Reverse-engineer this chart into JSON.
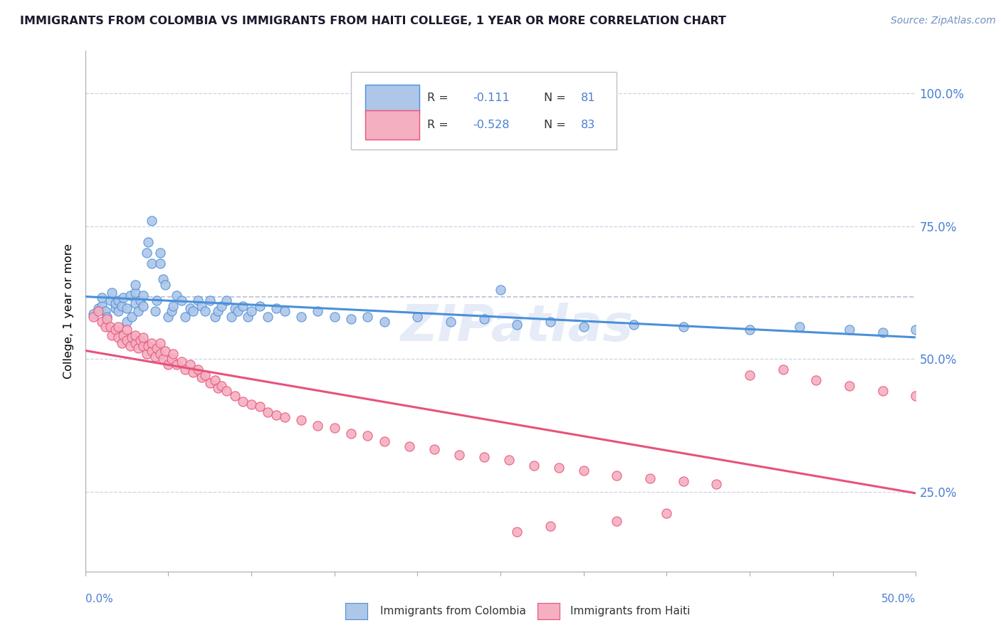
{
  "title": "IMMIGRANTS FROM COLOMBIA VS IMMIGRANTS FROM HAITI COLLEGE, 1 YEAR OR MORE CORRELATION CHART",
  "source": "Source: ZipAtlas.com",
  "ylabel": "College, 1 year or more",
  "y_tick_labels": [
    "25.0%",
    "50.0%",
    "75.0%",
    "100.0%"
  ],
  "y_tick_values": [
    0.25,
    0.5,
    0.75,
    1.0
  ],
  "x_min": 0.0,
  "x_max": 0.5,
  "y_min": 0.1,
  "y_max": 1.08,
  "colombia_color": "#aec6e8",
  "haiti_color": "#f4afc0",
  "colombia_line_color": "#4a90d9",
  "haiti_line_color": "#e8527a",
  "dashed_line_color": "#b8b8d0",
  "legend_text_color": "#4a7fd4",
  "legend_label_color": "#222222",
  "watermark": "ZIPatlas",
  "bottom_legend_label": "Immigrants from Colombia",
  "bottom_legend_label2": "Immigrants from Haiti",
  "colombia_x": [
    0.005,
    0.008,
    0.01,
    0.01,
    0.012,
    0.013,
    0.015,
    0.016,
    0.018,
    0.018,
    0.02,
    0.02,
    0.022,
    0.023,
    0.025,
    0.025,
    0.027,
    0.028,
    0.03,
    0.03,
    0.03,
    0.032,
    0.033,
    0.035,
    0.035,
    0.037,
    0.038,
    0.04,
    0.04,
    0.042,
    0.043,
    0.045,
    0.045,
    0.047,
    0.048,
    0.05,
    0.052,
    0.053,
    0.055,
    0.058,
    0.06,
    0.063,
    0.065,
    0.068,
    0.07,
    0.072,
    0.075,
    0.078,
    0.08,
    0.082,
    0.085,
    0.088,
    0.09,
    0.092,
    0.095,
    0.098,
    0.1,
    0.105,
    0.11,
    0.115,
    0.12,
    0.13,
    0.14,
    0.15,
    0.16,
    0.17,
    0.18,
    0.2,
    0.22,
    0.24,
    0.26,
    0.28,
    0.3,
    0.33,
    0.36,
    0.4,
    0.43,
    0.46,
    0.48,
    0.5,
    0.25
  ],
  "colombia_y": [
    0.585,
    0.595,
    0.6,
    0.615,
    0.59,
    0.58,
    0.61,
    0.625,
    0.595,
    0.605,
    0.59,
    0.61,
    0.6,
    0.615,
    0.57,
    0.595,
    0.62,
    0.58,
    0.605,
    0.625,
    0.64,
    0.59,
    0.61,
    0.6,
    0.62,
    0.7,
    0.72,
    0.76,
    0.68,
    0.59,
    0.61,
    0.68,
    0.7,
    0.65,
    0.64,
    0.58,
    0.59,
    0.6,
    0.62,
    0.61,
    0.58,
    0.595,
    0.59,
    0.61,
    0.6,
    0.59,
    0.61,
    0.58,
    0.59,
    0.6,
    0.61,
    0.58,
    0.595,
    0.59,
    0.6,
    0.58,
    0.59,
    0.6,
    0.58,
    0.595,
    0.59,
    0.58,
    0.59,
    0.58,
    0.575,
    0.58,
    0.57,
    0.58,
    0.57,
    0.575,
    0.565,
    0.57,
    0.56,
    0.565,
    0.56,
    0.555,
    0.56,
    0.555,
    0.55,
    0.555,
    0.63
  ],
  "haiti_x": [
    0.005,
    0.008,
    0.01,
    0.012,
    0.013,
    0.015,
    0.016,
    0.018,
    0.02,
    0.02,
    0.022,
    0.023,
    0.025,
    0.025,
    0.027,
    0.028,
    0.03,
    0.03,
    0.032,
    0.033,
    0.035,
    0.035,
    0.037,
    0.038,
    0.04,
    0.04,
    0.042,
    0.043,
    0.045,
    0.045,
    0.047,
    0.048,
    0.05,
    0.052,
    0.053,
    0.055,
    0.058,
    0.06,
    0.063,
    0.065,
    0.068,
    0.07,
    0.072,
    0.075,
    0.078,
    0.08,
    0.082,
    0.085,
    0.09,
    0.095,
    0.1,
    0.105,
    0.11,
    0.115,
    0.12,
    0.13,
    0.14,
    0.15,
    0.16,
    0.17,
    0.18,
    0.195,
    0.21,
    0.225,
    0.24,
    0.255,
    0.27,
    0.285,
    0.3,
    0.32,
    0.34,
    0.36,
    0.38,
    0.4,
    0.42,
    0.44,
    0.46,
    0.48,
    0.5,
    0.35,
    0.32,
    0.28,
    0.26
  ],
  "haiti_y": [
    0.58,
    0.59,
    0.57,
    0.56,
    0.575,
    0.56,
    0.545,
    0.555,
    0.54,
    0.56,
    0.53,
    0.545,
    0.535,
    0.555,
    0.525,
    0.54,
    0.53,
    0.545,
    0.52,
    0.535,
    0.525,
    0.54,
    0.51,
    0.525,
    0.515,
    0.53,
    0.505,
    0.52,
    0.51,
    0.53,
    0.5,
    0.515,
    0.49,
    0.5,
    0.51,
    0.49,
    0.495,
    0.48,
    0.49,
    0.475,
    0.48,
    0.465,
    0.47,
    0.455,
    0.46,
    0.445,
    0.45,
    0.44,
    0.43,
    0.42,
    0.415,
    0.41,
    0.4,
    0.395,
    0.39,
    0.385,
    0.375,
    0.37,
    0.36,
    0.355,
    0.345,
    0.335,
    0.33,
    0.32,
    0.315,
    0.31,
    0.3,
    0.295,
    0.29,
    0.28,
    0.275,
    0.27,
    0.265,
    0.47,
    0.48,
    0.46,
    0.45,
    0.44,
    0.43,
    0.21,
    0.195,
    0.185,
    0.175
  ]
}
